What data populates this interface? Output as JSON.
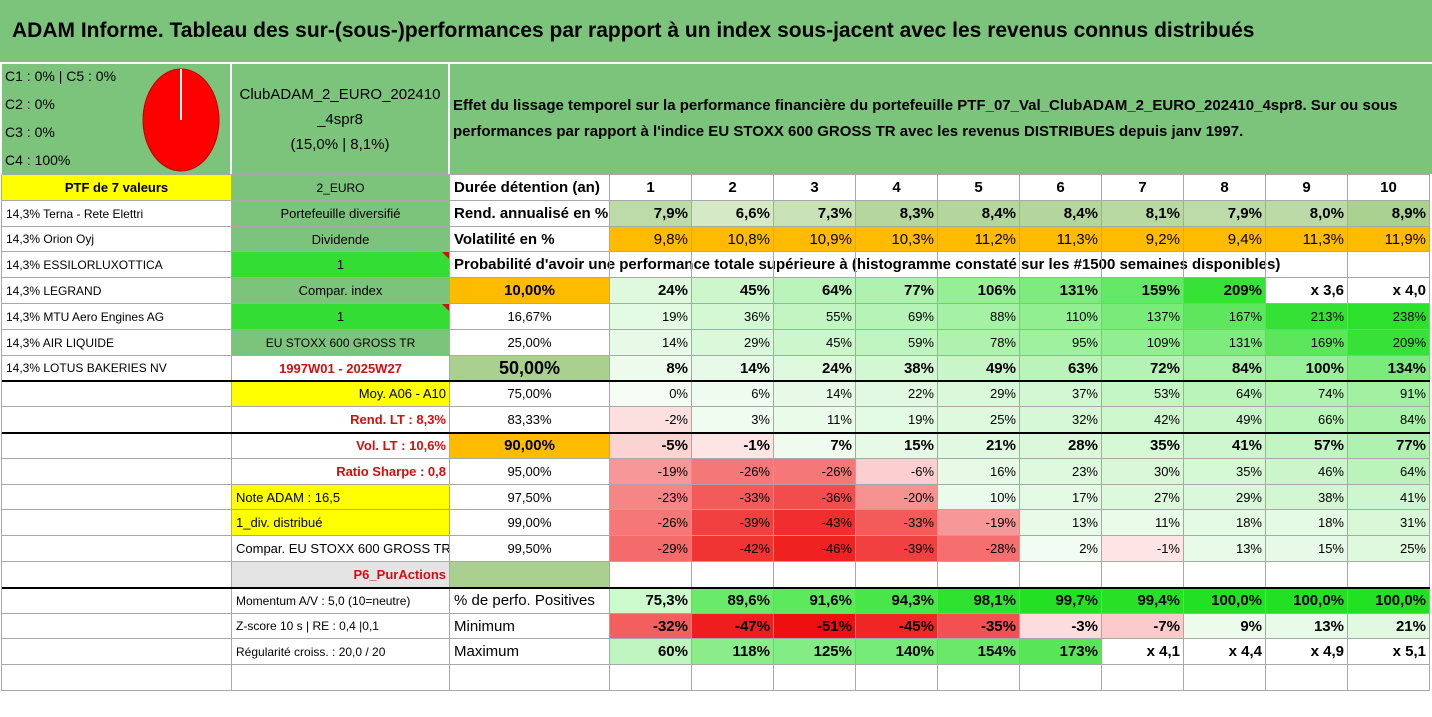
{
  "title": "ADAM Informe. Tableau des sur-(sous-)performances par rapport à un index sous-jacent avec les revenus connus distribués",
  "colors": {
    "header_green": "#7cc47c",
    "yellow": "#ffff00",
    "bright_green": "#33dd33",
    "orange": "#ffbb00",
    "light_green_neutral": "#a9d08e",
    "pie_red": "#ff0000",
    "red_text": "#d01010"
  },
  "legend": {
    "lines": [
      "C1 : 0% | C5 : 0%",
      "C2 : 0%",
      "C3 : 0%",
      "C4 : 100%"
    ],
    "pie": {
      "C1": 0,
      "C2": 0,
      "C3": 0,
      "C4": 100,
      "C5": 0
    }
  },
  "portfolio": {
    "name": "ClubADAM_2_EURO_202410_4spr8",
    "split": "(15,0% | 8,1%)",
    "description": "Effet du lissage temporel sur la performance financière du portefeuille PTF_07_Val_ClubADAM_2_EURO_202410_4spr8. Sur ou sous performances par rapport à l'indice EU STOXX 600 GROSS TR avec les revenus DISTRIBUES depuis janv 1997.",
    "count_label": "PTF de 7 valeurs",
    "code": "2_EURO"
  },
  "holdings": [
    "14,3% Terna - Rete Elettri",
    "14,3% Orion Oyj",
    "14,3% ESSILORLUXOTTICA",
    "14,3% LEGRAND",
    "14,3% MTU Aero Engines AG",
    "14,3% AIR LIQUIDE",
    "14,3% LOTUS BAKERIES NV"
  ],
  "info": {
    "diversification": "Portefeuille diversifié",
    "dividend_label": "Dividende",
    "dividend_value": "1",
    "compar_label": "Compar. index",
    "compar_value": "1",
    "index_name": "EU STOXX 600 GROSS TR",
    "period": "1997W01 - 2025W27",
    "moy": "Moy. A06 - A10",
    "rend_lt": "Rend. LT : 8,3%",
    "vol_lt": "Vol. LT : 10,6%",
    "sharpe": "Ratio Sharpe : 0,8",
    "note": "Note ADAM : 16,5",
    "div_distribue": "1_div. distribué",
    "compar_full": "Compar. EU STOXX 600 GROSS TR",
    "p6": "P6_PurActions",
    "momentum": "Momentum A/V : 5,0 (10=neutre)",
    "zscore": "Z-score 10 s | RE : 0,4 |0,1",
    "regularite": "Régularité croiss. : 20,0 / 20"
  },
  "table": {
    "duration_label": "Durée détention (an)",
    "years": [
      "1",
      "2",
      "3",
      "4",
      "5",
      "6",
      "7",
      "8",
      "9",
      "10"
    ],
    "rend_label": "Rend. annualisé en %",
    "rend": [
      "7,9%",
      "6,6%",
      "7,3%",
      "8,3%",
      "8,4%",
      "8,4%",
      "8,1%",
      "7,9%",
      "8,0%",
      "8,9%"
    ],
    "vol_label": "Volatilité en %",
    "vol": [
      "9,8%",
      "10,8%",
      "10,9%",
      "10,3%",
      "11,2%",
      "11,3%",
      "9,2%",
      "9,4%",
      "11,3%",
      "11,9%"
    ],
    "prob_label": "Probabilité d'avoir une performance totale supérieure à (histogramme constaté sur les #1500 semaines disponibles)",
    "percentiles": [
      {
        "p": "10,00%",
        "vals": [
          "24%",
          "45%",
          "64%",
          "77%",
          "106%",
          "131%",
          "159%",
          "209%",
          "x 3,6",
          "x 4,0"
        ],
        "bold": true
      },
      {
        "p": "16,67%",
        "vals": [
          "19%",
          "36%",
          "55%",
          "69%",
          "88%",
          "110%",
          "137%",
          "167%",
          "213%",
          "238%"
        ],
        "bold": false
      },
      {
        "p": "25,00%",
        "vals": [
          "14%",
          "29%",
          "45%",
          "59%",
          "78%",
          "95%",
          "109%",
          "131%",
          "169%",
          "209%"
        ],
        "bold": false
      },
      {
        "p": "50,00%",
        "vals": [
          "8%",
          "14%",
          "24%",
          "38%",
          "49%",
          "63%",
          "72%",
          "84%",
          "100%",
          "134%"
        ],
        "bold": true
      },
      {
        "p": "75,00%",
        "vals": [
          "0%",
          "6%",
          "14%",
          "22%",
          "29%",
          "37%",
          "53%",
          "64%",
          "74%",
          "91%"
        ],
        "bold": false
      },
      {
        "p": "83,33%",
        "vals": [
          "-2%",
          "3%",
          "11%",
          "19%",
          "25%",
          "32%",
          "42%",
          "49%",
          "66%",
          "84%"
        ],
        "bold": false
      },
      {
        "p": "90,00%",
        "vals": [
          "-5%",
          "-1%",
          "7%",
          "15%",
          "21%",
          "28%",
          "35%",
          "41%",
          "57%",
          "77%"
        ],
        "bold": true
      },
      {
        "p": "95,00%",
        "vals": [
          "-19%",
          "-26%",
          "-26%",
          "-6%",
          "16%",
          "23%",
          "30%",
          "35%",
          "46%",
          "64%"
        ],
        "bold": false
      },
      {
        "p": "97,50%",
        "vals": [
          "-23%",
          "-33%",
          "-36%",
          "-20%",
          "10%",
          "17%",
          "27%",
          "29%",
          "38%",
          "41%"
        ],
        "bold": false
      },
      {
        "p": "99,00%",
        "vals": [
          "-26%",
          "-39%",
          "-43%",
          "-33%",
          "-19%",
          "13%",
          "11%",
          "18%",
          "18%",
          "31%"
        ],
        "bold": false
      },
      {
        "p": "99,50%",
        "vals": [
          "-29%",
          "-42%",
          "-46%",
          "-39%",
          "-28%",
          "2%",
          "-1%",
          "13%",
          "15%",
          "25%"
        ],
        "bold": false
      }
    ],
    "positives_label": "% de perfo. Positives",
    "positives": [
      "75,3%",
      "89,6%",
      "91,6%",
      "94,3%",
      "98,1%",
      "99,7%",
      "99,4%",
      "100,0%",
      "100,0%",
      "100,0%"
    ],
    "minimum_label": "Minimum",
    "minimum": [
      "-32%",
      "-47%",
      "-51%",
      "-45%",
      "-35%",
      "-3%",
      "-7%",
      "9%",
      "13%",
      "21%"
    ],
    "maximum_label": "Maximum",
    "maximum": [
      "60%",
      "118%",
      "125%",
      "140%",
      "154%",
      "173%",
      "x 4,1",
      "x 4,4",
      "x 4,9",
      "x 5,1"
    ]
  }
}
